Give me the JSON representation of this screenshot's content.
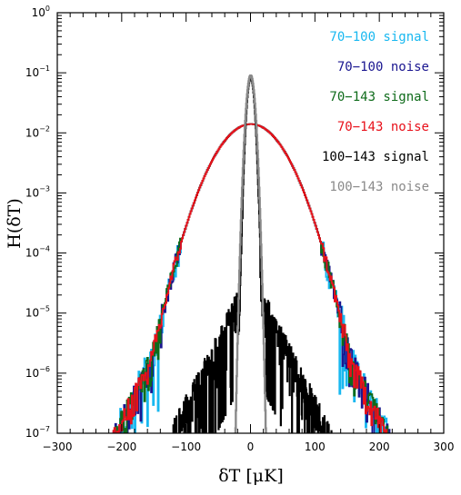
{
  "chart_data": {
    "type": "line",
    "xlabel": "δT   [μK]",
    "ylabel": "H(δT)",
    "xlim": [
      -300,
      300
    ],
    "ylim": [
      1e-07,
      1
    ],
    "yscale": "log",
    "xticks": [
      -300,
      -200,
      -100,
      0,
      100,
      200,
      300
    ],
    "xtick_labels": [
      "−300",
      "−200",
      "−100",
      "0",
      "100",
      "200",
      "300"
    ],
    "yticks": [
      {
        "base": "10",
        "exp": "0"
      },
      {
        "base": "10",
        "exp": "−1"
      },
      {
        "base": "10",
        "exp": "−2"
      },
      {
        "base": "10",
        "exp": "−3"
      },
      {
        "base": "10",
        "exp": "−4"
      },
      {
        "base": "10",
        "exp": "−5"
      },
      {
        "base": "10",
        "exp": "−6"
      },
      {
        "base": "10",
        "exp": "−7"
      }
    ],
    "legend_position": "top-right",
    "series": [
      {
        "name": "70−100 signal",
        "color": "#18b8f0",
        "peak": 0.014,
        "sigma": 36,
        "tail_scale": 30,
        "noise_amp": 0.45
      },
      {
        "name": "70−100 noise",
        "color": "#1a1690",
        "peak": 0.014,
        "sigma": 36,
        "tail_scale": 30,
        "noise_amp": 0.35
      },
      {
        "name": "70−143 signal",
        "color": "#0e6b1a",
        "peak": 0.014,
        "sigma": 36,
        "tail_scale": 30,
        "noise_amp": 0.3
      },
      {
        "name": "70−143 noise",
        "color": "#e8101a",
        "peak": 0.014,
        "sigma": 36,
        "tail_scale": 30,
        "noise_amp": 0.25
      },
      {
        "name": "100−143 signal",
        "color": "#000000",
        "peak": 0.08,
        "sigma": 4,
        "tail_scale": 20,
        "noise_amp": 0.6
      },
      {
        "name": "100−143 noise",
        "color": "#8a8a8a",
        "peak": 0.09,
        "sigma": 4.5,
        "tail_scale": 0,
        "noise_amp": 0
      }
    ]
  }
}
